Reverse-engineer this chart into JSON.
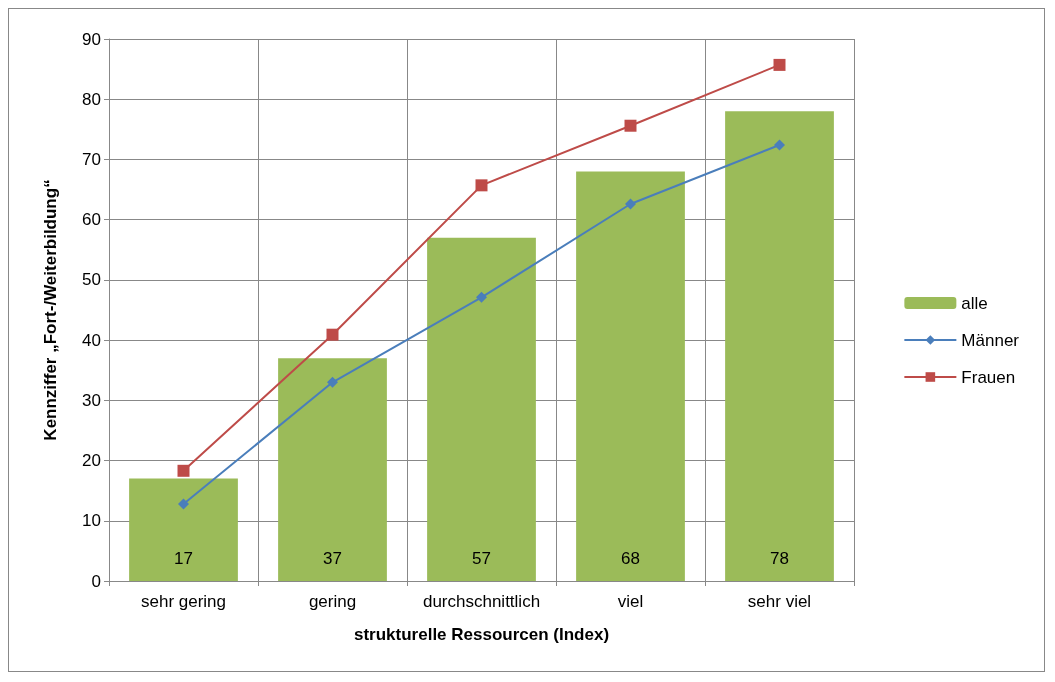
{
  "chart_data": {
    "type": "bar",
    "xlabel": "strukturelle Ressourcen (Index)",
    "ylabel": "Kennziffer „Fort-/Weiterbildung“",
    "categories": [
      "sehr gering",
      "gering",
      "durchschnittlich",
      "viel",
      "sehr viel"
    ],
    "series": [
      {
        "name": "alle",
        "color": "#9bbb59",
        "values": [
          17,
          37,
          57,
          68,
          78
        ],
        "data_labels": true
      },
      {
        "name": "Männer",
        "type": "line",
        "color": "#4a7ebb",
        "marker": "diamond",
        "values": [
          12.8,
          33,
          47.1,
          62.6,
          72.4
        ]
      },
      {
        "name": "Frauen",
        "type": "line",
        "color": "#be4b48",
        "marker": "square",
        "values": [
          18.3,
          40.9,
          65.7,
          75.6,
          85.7
        ]
      }
    ],
    "ylim": [
      0,
      90
    ],
    "yticks": [
      0,
      10,
      20,
      30,
      40,
      50,
      60,
      70,
      80,
      90
    ],
    "grid": true,
    "legend": "right"
  }
}
